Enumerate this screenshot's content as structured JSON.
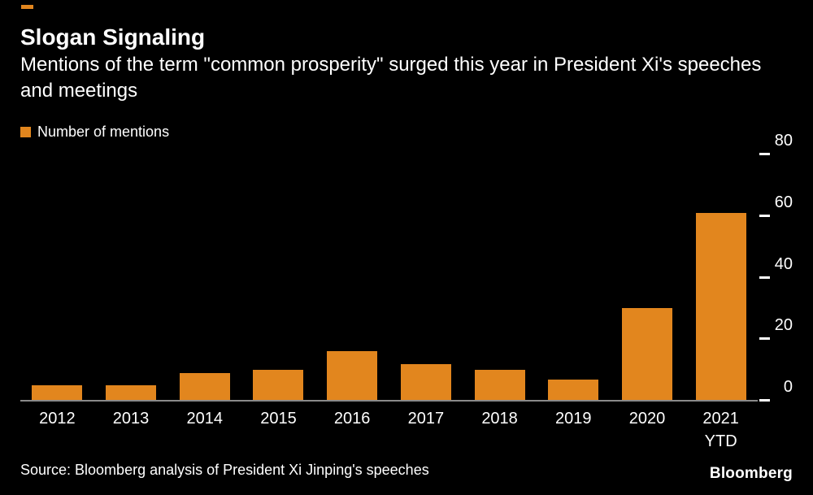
{
  "header": {
    "title": "Slogan Signaling",
    "subtitle": "Mentions of the term \"common prosperity\" surged this year in President Xi's speeches and meetings"
  },
  "legend": {
    "label": "Number of mentions",
    "color": "#E2861E"
  },
  "chart_data": {
    "type": "bar",
    "title": "Slogan Signaling",
    "categories": [
      "2012",
      "2013",
      "2014",
      "2015",
      "2016",
      "2017",
      "2018",
      "2019",
      "2020",
      "2021 YTD"
    ],
    "values": [
      5,
      5,
      9,
      10,
      16,
      12,
      10,
      7,
      30,
      61
    ],
    "series_name": "Number of mentions",
    "xlabel": "",
    "ylabel": "Number of mentions",
    "ylim": [
      0,
      80
    ],
    "yticks": [
      0,
      20,
      40,
      60,
      80
    ],
    "bar_color": "#E2861E",
    "grid": false,
    "legend_position": "top-left",
    "y_axis_side": "right"
  },
  "footer": {
    "source": "Source: Bloomberg analysis of President Xi Jinping's speeches",
    "logo": "Bloomberg"
  },
  "colors": {
    "background": "#000000",
    "text": "#ffffff",
    "axis_line": "#8a8a8a",
    "accent": "#E2861E"
  }
}
